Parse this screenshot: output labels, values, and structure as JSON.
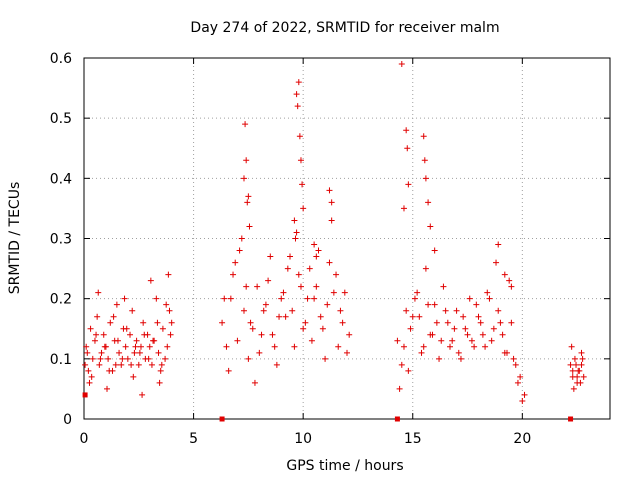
{
  "chart_data": {
    "type": "scatter",
    "title": "Day 274 of 2022, SRMTID for receiver malm",
    "xlabel": "GPS time / hours",
    "ylabel": "SRMTID / TECUs",
    "xlim": [
      0,
      24
    ],
    "ylim": [
      0,
      0.6
    ],
    "grid": true,
    "marker": "+",
    "color": "#e00000",
    "xticks": [
      0,
      5,
      10,
      15,
      20
    ],
    "xtick_labels": [
      "0",
      "5",
      "10",
      "15",
      "20"
    ],
    "yticks": [
      0,
      0.1,
      0.2,
      0.3,
      0.4,
      0.5,
      0.6
    ],
    "ytick_labels": [
      "0",
      "0.1",
      "0.2",
      "0.3",
      "0.4",
      "0.5",
      "0.6"
    ],
    "baseline_markers": [
      {
        "x": 0.05,
        "y": 0.04
      },
      {
        "x": 6.3,
        "y": 0.0
      },
      {
        "x": 14.3,
        "y": 0.0
      },
      {
        "x": 22.2,
        "y": 0.0
      }
    ],
    "series": [
      {
        "name": "SRMTID",
        "x": [
          0.05,
          0.1,
          0.2,
          0.3,
          0.4,
          0.5,
          0.6,
          0.7,
          0.8,
          0.9,
          1.0,
          1.1,
          1.2,
          1.3,
          1.4,
          1.5,
          1.6,
          1.7,
          1.8,
          1.9,
          2.0,
          2.1,
          2.2,
          2.3,
          2.4,
          2.5,
          2.6,
          2.7,
          2.8,
          2.9,
          3.0,
          3.1,
          3.2,
          3.3,
          3.4,
          3.5,
          3.6,
          3.7,
          3.8,
          3.9,
          4.0,
          0.15,
          0.35,
          0.55,
          0.75,
          0.95,
          1.15,
          1.35,
          1.55,
          1.75,
          1.95,
          2.15,
          2.35,
          2.55,
          2.75,
          2.95,
          3.15,
          3.35,
          3.55,
          3.75,
          3.95,
          0.25,
          0.65,
          1.05,
          1.45,
          1.85,
          2.25,
          2.65,
          3.05,
          3.45,
          3.85,
          6.3,
          6.5,
          6.7,
          6.9,
          7.1,
          7.3,
          7.5,
          7.7,
          7.9,
          8.1,
          8.3,
          8.5,
          8.7,
          8.9,
          9.1,
          9.3,
          9.5,
          9.7,
          9.9,
          10.1,
          10.3,
          10.5,
          10.7,
          10.9,
          11.1,
          11.3,
          11.5,
          11.7,
          11.9,
          12.1,
          6.4,
          6.6,
          6.8,
          7.0,
          7.2,
          7.4,
          7.6,
          7.8,
          8.0,
          8.2,
          8.4,
          8.6,
          8.8,
          9.0,
          9.2,
          9.4,
          9.6,
          9.8,
          10.0,
          10.2,
          10.4,
          10.6,
          10.8,
          11.0,
          11.2,
          11.4,
          11.6,
          11.8,
          12.0,
          7.35,
          7.4,
          7.45,
          7.3,
          9.7,
          9.75,
          9.8,
          9.85,
          9.9,
          9.95,
          10.0,
          9.6,
          9.65,
          7.5,
          7.55,
          11.2,
          11.3,
          10.5,
          10.6,
          14.3,
          14.5,
          14.7,
          14.9,
          15.1,
          15.3,
          15.5,
          15.7,
          15.9,
          16.1,
          16.3,
          16.5,
          16.7,
          16.9,
          17.1,
          17.3,
          17.5,
          17.7,
          17.9,
          18.1,
          18.3,
          18.5,
          18.7,
          18.9,
          19.1,
          19.3,
          19.5,
          19.7,
          19.9,
          20.1,
          14.4,
          14.6,
          14.8,
          15.0,
          15.2,
          15.4,
          15.6,
          15.8,
          16.0,
          16.2,
          16.4,
          16.6,
          16.8,
          17.0,
          17.2,
          17.4,
          17.6,
          17.8,
          18.0,
          18.2,
          18.4,
          18.6,
          18.8,
          19.0,
          19.2,
          19.4,
          19.6,
          19.8,
          20.0,
          14.7,
          14.75,
          14.8,
          15.5,
          15.55,
          15.6,
          14.5,
          14.6,
          15.7,
          15.8,
          16.0,
          18.9,
          19.2,
          19.5,
          22.2,
          22.3,
          22.4,
          22.5,
          22.6,
          22.7,
          22.8,
          22.25,
          22.35,
          22.45,
          22.55,
          22.65,
          22.75,
          22.3,
          22.5,
          22.7
        ],
        "y": [
          0.09,
          0.12,
          0.08,
          0.15,
          0.1,
          0.13,
          0.17,
          0.09,
          0.11,
          0.14,
          0.12,
          0.1,
          0.16,
          0.08,
          0.13,
          0.19,
          0.11,
          0.09,
          0.15,
          0.12,
          0.1,
          0.14,
          0.18,
          0.11,
          0.13,
          0.09,
          0.12,
          0.16,
          0.1,
          0.14,
          0.12,
          0.09,
          0.13,
          0.2,
          0.11,
          0.08,
          0.15,
          0.1,
          0.12,
          0.18,
          0.16,
          0.11,
          0.07,
          0.14,
          0.1,
          0.12,
          0.08,
          0.17,
          0.13,
          0.1,
          0.15,
          0.09,
          0.12,
          0.11,
          0.14,
          0.1,
          0.13,
          0.16,
          0.09,
          0.19,
          0.14,
          0.06,
          0.21,
          0.05,
          0.09,
          0.2,
          0.07,
          0.04,
          0.23,
          0.06,
          0.24,
          0.16,
          0.12,
          0.2,
          0.26,
          0.28,
          0.18,
          0.1,
          0.15,
          0.22,
          0.14,
          0.19,
          0.27,
          0.12,
          0.17,
          0.21,
          0.25,
          0.18,
          0.31,
          0.22,
          0.16,
          0.25,
          0.2,
          0.28,
          0.15,
          0.19,
          0.33,
          0.24,
          0.18,
          0.21,
          0.14,
          0.2,
          0.08,
          0.24,
          0.13,
          0.3,
          0.22,
          0.16,
          0.06,
          0.11,
          0.18,
          0.23,
          0.14,
          0.09,
          0.2,
          0.17,
          0.27,
          0.12,
          0.24,
          0.15,
          0.2,
          0.13,
          0.22,
          0.17,
          0.1,
          0.26,
          0.21,
          0.12,
          0.16,
          0.11,
          0.49,
          0.43,
          0.36,
          0.4,
          0.54,
          0.52,
          0.56,
          0.47,
          0.43,
          0.39,
          0.35,
          0.33,
          0.3,
          0.37,
          0.32,
          0.38,
          0.36,
          0.29,
          0.27,
          0.13,
          0.09,
          0.18,
          0.15,
          0.2,
          0.17,
          0.12,
          0.19,
          0.14,
          0.16,
          0.13,
          0.18,
          0.12,
          0.15,
          0.11,
          0.17,
          0.14,
          0.13,
          0.19,
          0.16,
          0.12,
          0.2,
          0.15,
          0.18,
          0.14,
          0.11,
          0.16,
          0.09,
          0.07,
          0.04,
          0.05,
          0.12,
          0.08,
          0.17,
          0.21,
          0.11,
          0.25,
          0.14,
          0.19,
          0.1,
          0.22,
          0.16,
          0.13,
          0.18,
          0.1,
          0.15,
          0.2,
          0.12,
          0.17,
          0.14,
          0.21,
          0.13,
          0.26,
          0.16,
          0.11,
          0.23,
          0.1,
          0.06,
          0.03,
          0.48,
          0.45,
          0.39,
          0.47,
          0.43,
          0.4,
          0.59,
          0.35,
          0.36,
          0.32,
          0.28,
          0.29,
          0.24,
          0.22,
          0.09,
          0.07,
          0.1,
          0.06,
          0.08,
          0.11,
          0.07,
          0.12,
          0.05,
          0.09,
          0.08,
          0.06,
          0.1,
          0.08,
          0.07,
          0.09
        ]
      }
    ]
  }
}
